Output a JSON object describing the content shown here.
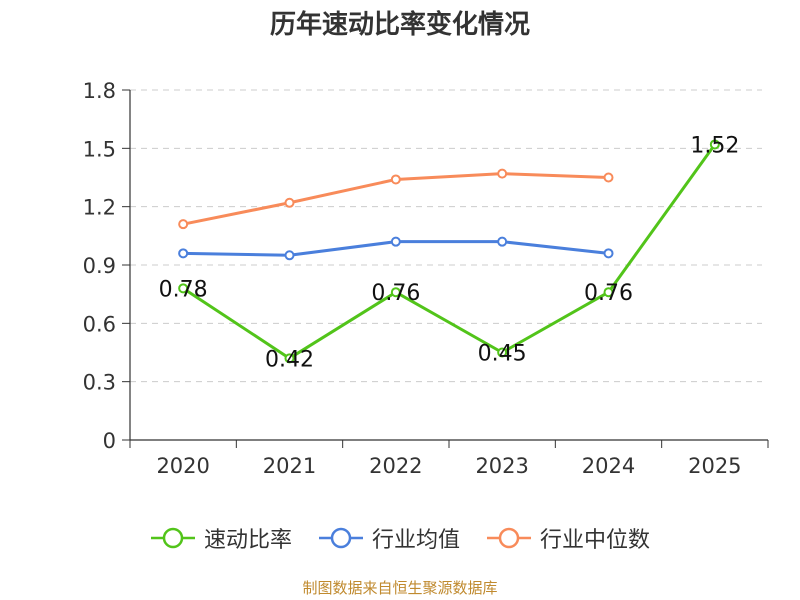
{
  "chart_data": {
    "type": "line",
    "title": "历年速动比率变化情况",
    "categories": [
      "2020",
      "2021",
      "2022",
      "2023",
      "2024",
      "2025"
    ],
    "yticks": [
      "0",
      "0.3",
      "0.6",
      "0.9",
      "1.2",
      "1.5",
      "1.8"
    ],
    "ylim": [
      0,
      1.8
    ],
    "grid": true,
    "legend_position": "bottom",
    "series": [
      {
        "name": "速动比率",
        "color": "#52c41a",
        "values": [
          0.78,
          0.42,
          0.76,
          0.45,
          0.76,
          1.52
        ],
        "labels": [
          "0.78",
          "0.42",
          "0.76",
          "0.45",
          "0.76",
          "1.52"
        ]
      },
      {
        "name": "行业均值",
        "color": "#4a7fdc",
        "values": [
          0.96,
          0.95,
          1.02,
          1.02,
          0.96,
          null
        ]
      },
      {
        "name": "行业中位数",
        "color": "#f88b5a",
        "values": [
          1.11,
          1.22,
          1.34,
          1.37,
          1.35,
          null
        ]
      }
    ]
  },
  "footer": "制图数据来自恒生聚源数据库"
}
